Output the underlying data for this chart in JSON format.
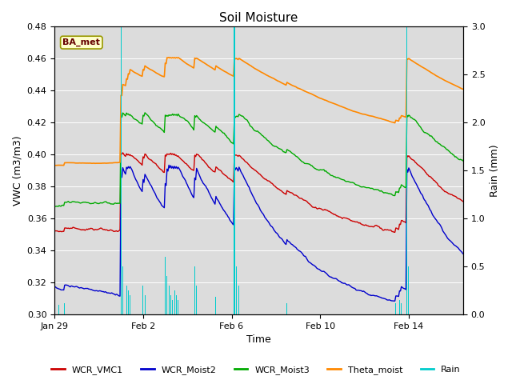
{
  "title": "Soil Moisture",
  "xlabel": "Time",
  "ylabel_left": "VWC (m3/m3)",
  "ylabel_right": "Rain (mm)",
  "ylim_left": [
    0.3,
    0.48
  ],
  "ylim_right": [
    0.0,
    3.0
  ],
  "yticks_left": [
    0.3,
    0.32,
    0.34,
    0.36,
    0.38,
    0.4,
    0.42,
    0.44,
    0.46,
    0.48
  ],
  "yticks_right": [
    0.0,
    0.5,
    1.0,
    1.5,
    2.0,
    2.5,
    3.0
  ],
  "xtick_labels": [
    "Jan 29",
    "Feb 2",
    "Feb 6",
    "Feb 10",
    "Feb 14"
  ],
  "bg_color": "#dcdcdc",
  "ba_met_label": "BA_met",
  "legend_entries": [
    "WCR_VMC1",
    "WCR_Moist2",
    "WCR_Moist3",
    "Theta_moist",
    "Rain"
  ],
  "line_colors": {
    "WCR_VMC1": "#cc0000",
    "WCR_Moist2": "#0000cc",
    "WCR_Moist3": "#00aa00",
    "Theta_moist": "#ff8800",
    "Rain": "#00cccc"
  }
}
